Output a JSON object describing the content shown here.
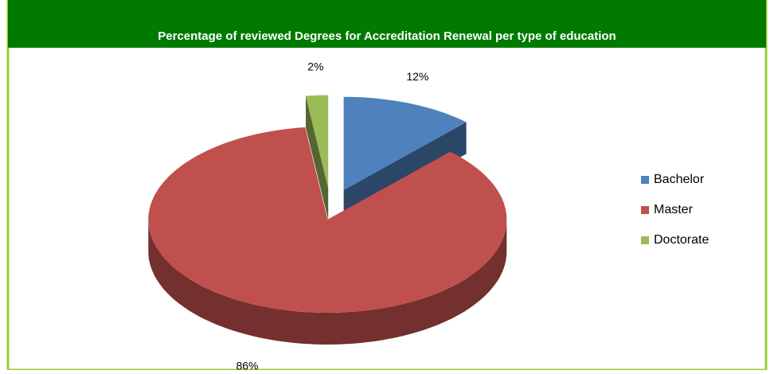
{
  "chart_data": {
    "type": "pie",
    "title": "Percentage of reviewed Degrees for Accreditation Renewal per type of education",
    "categories": [
      "Bachelor",
      "Master",
      "Doctorate"
    ],
    "values": [
      12,
      86,
      2
    ],
    "value_labels": [
      "12%",
      "86%",
      "2%"
    ],
    "colors": [
      "#4f81bd",
      "#c0504d",
      "#9bbb59"
    ],
    "legend": "right"
  }
}
